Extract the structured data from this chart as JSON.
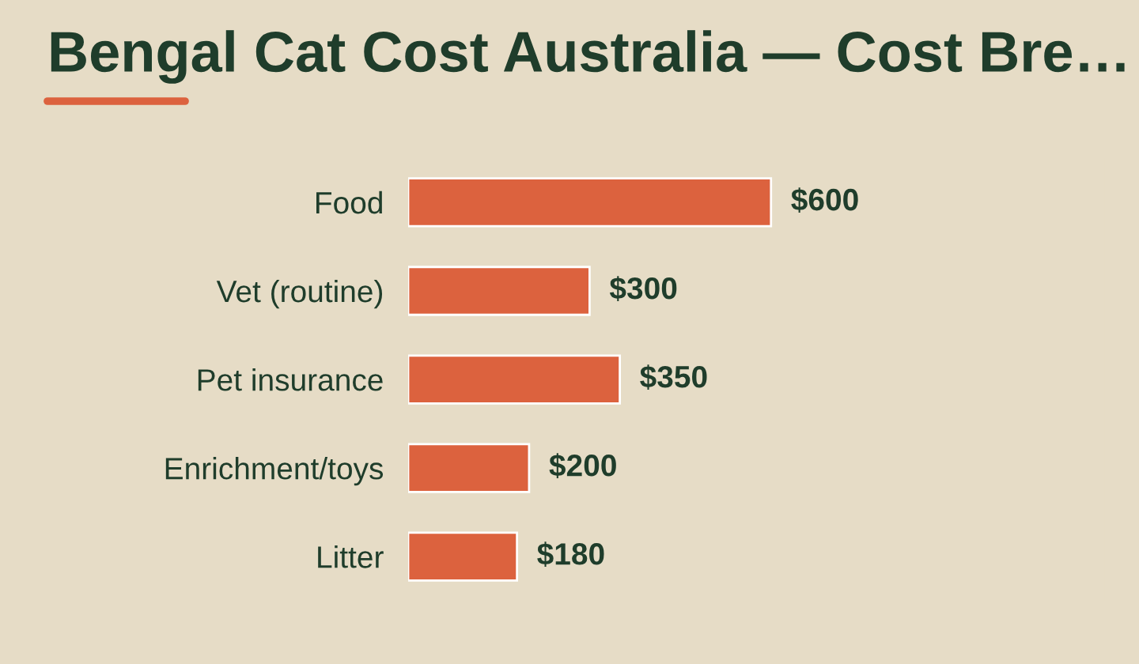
{
  "chart_data": {
    "type": "bar",
    "orientation": "horizontal",
    "title": "Bengal Cat Cost Australia — Cost Bre…",
    "categories": [
      "Food",
      "Vet (routine)",
      "Pet insurance",
      "Enrichment/toys",
      "Litter"
    ],
    "values": [
      600,
      300,
      350,
      200,
      180
    ],
    "value_labels": [
      "$600",
      "$300",
      "$350",
      "$200",
      "$180"
    ],
    "color": "#dc623e",
    "grid": false,
    "legend": false
  }
}
